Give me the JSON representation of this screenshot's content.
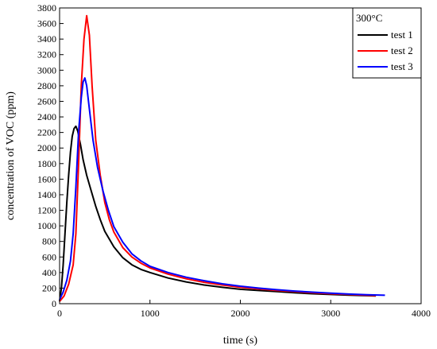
{
  "chart_data": {
    "type": "line",
    "xlabel": "time (s)",
    "ylabel": "concentration of VOC (ppm)",
    "xlim": [
      0,
      4000
    ],
    "ylim": [
      0,
      3800
    ],
    "xticks": [
      0,
      1000,
      2000,
      3000,
      4000
    ],
    "yticks": [
      0,
      200,
      400,
      600,
      800,
      1000,
      1200,
      1400,
      1600,
      1800,
      2000,
      2200,
      2400,
      2600,
      2800,
      3000,
      3200,
      3400,
      3600,
      3800
    ],
    "grid": false,
    "legend_title": "300°C",
    "legend_position": "top-right",
    "series": [
      {
        "name": "test 1",
        "color": "#000000",
        "points": [
          [
            0,
            30
          ],
          [
            20,
            200
          ],
          [
            40,
            500
          ],
          [
            60,
            900
          ],
          [
            80,
            1300
          ],
          [
            100,
            1650
          ],
          [
            120,
            1950
          ],
          [
            140,
            2150
          ],
          [
            160,
            2250
          ],
          [
            180,
            2280
          ],
          [
            200,
            2220
          ],
          [
            230,
            2050
          ],
          [
            260,
            1850
          ],
          [
            300,
            1650
          ],
          [
            350,
            1450
          ],
          [
            400,
            1250
          ],
          [
            450,
            1080
          ],
          [
            500,
            930
          ],
          [
            600,
            730
          ],
          [
            700,
            590
          ],
          [
            800,
            500
          ],
          [
            900,
            440
          ],
          [
            1000,
            400
          ],
          [
            1200,
            330
          ],
          [
            1400,
            280
          ],
          [
            1600,
            240
          ],
          [
            1800,
            210
          ],
          [
            2000,
            185
          ],
          [
            2200,
            170
          ],
          [
            2400,
            155
          ],
          [
            2600,
            140
          ],
          [
            2800,
            128
          ],
          [
            3000,
            118
          ],
          [
            3200,
            110
          ],
          [
            3400,
            103
          ],
          [
            3500,
            100
          ]
        ]
      },
      {
        "name": "test 2",
        "color": "#ff0000",
        "points": [
          [
            0,
            30
          ],
          [
            50,
            100
          ],
          [
            100,
            250
          ],
          [
            150,
            500
          ],
          [
            180,
            900
          ],
          [
            210,
            1800
          ],
          [
            240,
            2800
          ],
          [
            270,
            3400
          ],
          [
            300,
            3700
          ],
          [
            330,
            3450
          ],
          [
            360,
            2800
          ],
          [
            400,
            2100
          ],
          [
            450,
            1650
          ],
          [
            500,
            1300
          ],
          [
            550,
            1080
          ],
          [
            600,
            920
          ],
          [
            700,
            720
          ],
          [
            800,
            600
          ],
          [
            900,
            520
          ],
          [
            1000,
            460
          ],
          [
            1200,
            380
          ],
          [
            1400,
            320
          ],
          [
            1600,
            275
          ],
          [
            1800,
            240
          ],
          [
            2000,
            210
          ],
          [
            2200,
            190
          ],
          [
            2400,
            170
          ],
          [
            2600,
            155
          ],
          [
            2800,
            140
          ],
          [
            3000,
            128
          ],
          [
            3200,
            118
          ],
          [
            3400,
            108
          ],
          [
            3500,
            103
          ]
        ]
      },
      {
        "name": "test 3",
        "color": "#0000ff",
        "points": [
          [
            0,
            50
          ],
          [
            40,
            150
          ],
          [
            80,
            300
          ],
          [
            120,
            550
          ],
          [
            150,
            900
          ],
          [
            180,
            1500
          ],
          [
            210,
            2200
          ],
          [
            240,
            2650
          ],
          [
            260,
            2850
          ],
          [
            280,
            2900
          ],
          [
            300,
            2800
          ],
          [
            330,
            2500
          ],
          [
            370,
            2100
          ],
          [
            420,
            1750
          ],
          [
            480,
            1450
          ],
          [
            540,
            1200
          ],
          [
            600,
            990
          ],
          [
            700,
            790
          ],
          [
            800,
            640
          ],
          [
            900,
            550
          ],
          [
            1000,
            480
          ],
          [
            1200,
            400
          ],
          [
            1400,
            340
          ],
          [
            1600,
            295
          ],
          [
            1800,
            255
          ],
          [
            2000,
            225
          ],
          [
            2200,
            200
          ],
          [
            2400,
            180
          ],
          [
            2600,
            162
          ],
          [
            2800,
            148
          ],
          [
            3000,
            135
          ],
          [
            3200,
            124
          ],
          [
            3400,
            115
          ],
          [
            3600,
            108
          ]
        ]
      }
    ]
  }
}
